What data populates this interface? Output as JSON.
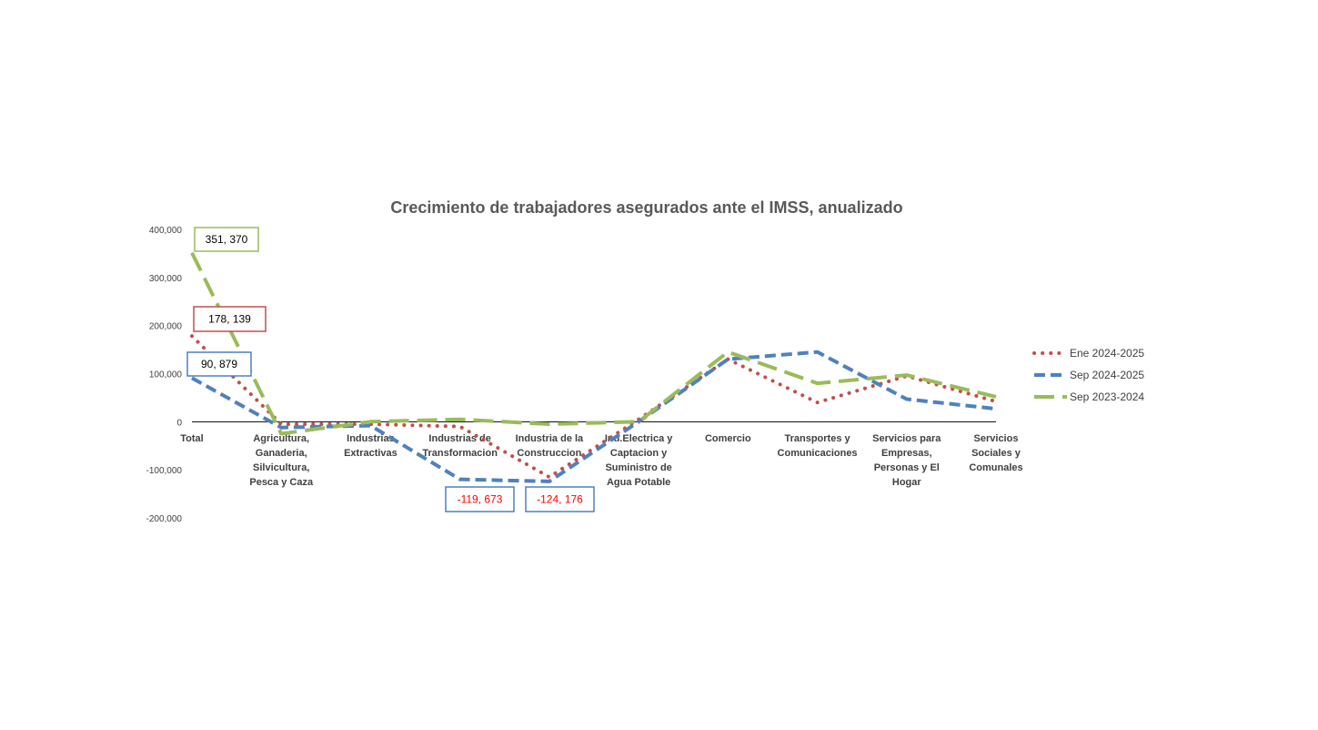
{
  "chart_data": {
    "type": "line",
    "title": "Crecimiento de trabajadores asegurados ante el IMSS, anualizado",
    "xlabel": "",
    "ylabel": "",
    "ylim": [
      -200000,
      400000
    ],
    "y_ticks": [
      400000,
      300000,
      200000,
      100000,
      0,
      -100000,
      -200000
    ],
    "y_tick_labels": [
      "400,000",
      "300,000",
      "200,000",
      "100,000",
      "0",
      "-100,000",
      "-200,000"
    ],
    "grid": false,
    "legend_position": "right",
    "categories": [
      [
        "Total"
      ],
      [
        "Agricultura,",
        "Ganaderia,",
        "Silvicultura,",
        "Pesca y Caza"
      ],
      [
        "Industrias",
        "Extractivas"
      ],
      [
        "Industrias de",
        "Transformacion"
      ],
      [
        "Industria de  la",
        "Construccion"
      ],
      [
        "Ind.Electrica y",
        "Captacion y",
        "Suministro de",
        "Agua Potable"
      ],
      [
        "Comercio"
      ],
      [
        "Transportes y",
        "Comunicaciones"
      ],
      [
        "Servicios para",
        "Empresas,",
        "Personas y El",
        "Hogar"
      ],
      [
        "Servicios",
        "Sociales y",
        "Comunales"
      ]
    ],
    "series": [
      {
        "name": "Ene 2024-2025",
        "color": "#c0504d",
        "style": "dotted",
        "values": [
          178139,
          -5000,
          -5000,
          -10000,
          -115000,
          5000,
          130000,
          40000,
          95000,
          42000
        ]
      },
      {
        "name": "Sep 2024-2025",
        "color": "#4f81bd",
        "style": "dashed",
        "values": [
          90879,
          -12000,
          -8000,
          -119673,
          -124176,
          0,
          130000,
          145000,
          47000,
          27000
        ]
      },
      {
        "name": "Sep 2023-2024",
        "color": "#9bbb59",
        "style": "long-dash",
        "values": [
          351370,
          -25000,
          0,
          5000,
          -5000,
          0,
          145000,
          80000,
          97000,
          52000
        ]
      }
    ],
    "annotations": [
      {
        "text": "351, 370",
        "series": 2,
        "index": 0,
        "border_color": "#9bbb59",
        "text_color": "#000000"
      },
      {
        "text": "178, 139",
        "series": 0,
        "index": 0,
        "border_color": "#c0504d",
        "text_color": "#000000"
      },
      {
        "text": "90, 879",
        "series": 1,
        "index": 0,
        "border_color": "#4f81bd",
        "text_color": "#000000"
      },
      {
        "text": "-119, 673",
        "series": 1,
        "index": 3,
        "border_color": "#4f81bd",
        "text_color": "#ff0000"
      },
      {
        "text": "-124, 176",
        "series": 1,
        "index": 4,
        "border_color": "#4f81bd",
        "text_color": "#ff0000"
      }
    ]
  }
}
